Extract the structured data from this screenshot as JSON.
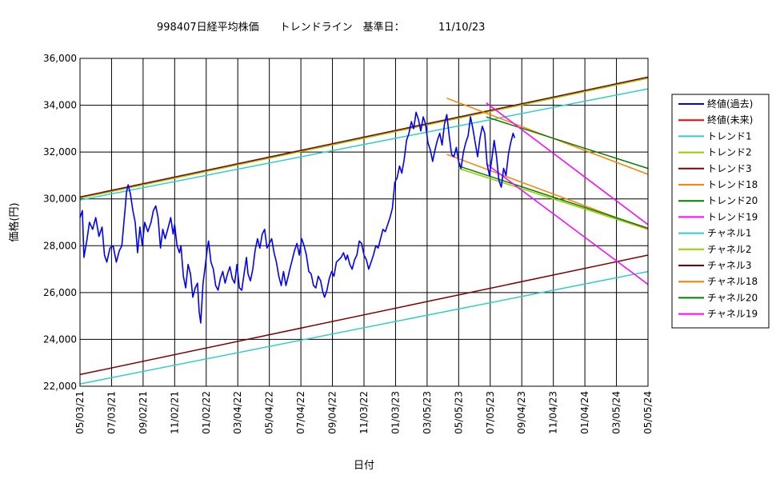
{
  "chart_data": {
    "type": "line",
    "title": "998407日経平均株価　　トレンドライン　基準日：",
    "base_date": "11/10/23",
    "ylabel": "価格(円)",
    "xlabel": "日付",
    "ylim": [
      22000,
      36000
    ],
    "yticks": [
      "22,000",
      "24,000",
      "26,000",
      "28,000",
      "30,000",
      "32,000",
      "34,000",
      "36,000"
    ],
    "xticks": [
      "05/03/21",
      "07/03/21",
      "09/02/21",
      "11/02/21",
      "01/02/22",
      "03/04/22",
      "05/04/22",
      "07/04/22",
      "09/04/22",
      "11/03/22",
      "01/03/23",
      "03/05/23",
      "05/05/23",
      "07/05/23",
      "09/04/23",
      "11/04/23",
      "01/04/24",
      "03/05/24",
      "05/05/24"
    ],
    "x_range_months": [
      0,
      36
    ],
    "grid": true,
    "legend_position": "right",
    "series": [
      {
        "name": "終値(過去)",
        "color": "#0000ff",
        "style": "wide",
        "points": [
          [
            0.0,
            29200
          ],
          [
            0.3,
            29500
          ],
          [
            0.5,
            27500
          ],
          [
            0.9,
            28300
          ],
          [
            1.2,
            29000
          ],
          [
            1.6,
            28700
          ],
          [
            2.0,
            29200
          ],
          [
            2.4,
            28400
          ],
          [
            2.8,
            28800
          ],
          [
            3.1,
            27600
          ],
          [
            3.4,
            27300
          ],
          [
            3.8,
            27900
          ],
          [
            4.2,
            28000
          ],
          [
            4.6,
            27300
          ],
          [
            5.0,
            27800
          ],
          [
            5.3,
            28000
          ],
          [
            5.7,
            29500
          ],
          [
            5.9,
            30300
          ],
          [
            6.1,
            30600
          ],
          [
            6.4,
            30200
          ],
          [
            6.7,
            29500
          ],
          [
            7.0,
            29000
          ],
          [
            7.3,
            27700
          ],
          [
            7.6,
            28800
          ],
          [
            7.9,
            28000
          ],
          [
            8.2,
            29000
          ],
          [
            8.6,
            28600
          ],
          [
            9.0,
            29000
          ],
          [
            9.3,
            29500
          ],
          [
            9.6,
            29700
          ],
          [
            9.9,
            29200
          ],
          [
            10.2,
            27900
          ],
          [
            10.5,
            28700
          ],
          [
            10.8,
            28300
          ],
          [
            11.2,
            28800
          ],
          [
            11.5,
            29200
          ],
          [
            11.8,
            28500
          ],
          [
            12.0,
            28900
          ],
          [
            12.3,
            28000
          ],
          [
            12.6,
            27700
          ],
          [
            12.8,
            28000
          ],
          [
            13.1,
            26700
          ],
          [
            13.4,
            26200
          ],
          [
            13.7,
            27200
          ],
          [
            14.0,
            26800
          ],
          [
            14.3,
            25800
          ],
          [
            14.6,
            26200
          ],
          [
            14.9,
            26400
          ],
          [
            15.1,
            25200
          ],
          [
            15.3,
            24700
          ],
          [
            15.6,
            26400
          ],
          [
            15.9,
            27200
          ],
          [
            16.1,
            27800
          ],
          [
            16.3,
            28200
          ],
          [
            16.6,
            27300
          ],
          [
            16.9,
            27000
          ],
          [
            17.2,
            26300
          ],
          [
            17.5,
            26100
          ],
          [
            17.8,
            26600
          ],
          [
            18.1,
            26900
          ],
          [
            18.4,
            26400
          ],
          [
            18.7,
            26800
          ],
          [
            19.0,
            27100
          ],
          [
            19.3,
            26600
          ],
          [
            19.6,
            26400
          ],
          [
            19.9,
            27200
          ],
          [
            20.2,
            26200
          ],
          [
            20.5,
            26100
          ],
          [
            20.8,
            26800
          ],
          [
            21.1,
            27500
          ],
          [
            21.3,
            26800
          ],
          [
            21.6,
            26500
          ],
          [
            21.9,
            27000
          ],
          [
            22.2,
            27800
          ],
          [
            22.5,
            28300
          ],
          [
            22.8,
            27900
          ],
          [
            23.1,
            28500
          ],
          [
            23.4,
            28700
          ],
          [
            23.7,
            27900
          ],
          [
            24.0,
            28100
          ],
          [
            24.3,
            28300
          ],
          [
            24.6,
            27700
          ],
          [
            24.9,
            27300
          ],
          [
            25.2,
            26700
          ],
          [
            25.5,
            26300
          ],
          [
            25.8,
            26900
          ],
          [
            26.1,
            26300
          ],
          [
            26.4,
            26700
          ],
          [
            26.6,
            27000
          ],
          [
            26.9,
            27400
          ],
          [
            27.2,
            27800
          ],
          [
            27.5,
            28100
          ],
          [
            27.8,
            27600
          ],
          [
            28.1,
            28300
          ],
          [
            28.4,
            28000
          ],
          [
            28.7,
            27600
          ],
          [
            29.0,
            26900
          ],
          [
            29.3,
            26800
          ],
          [
            29.6,
            26300
          ],
          [
            29.9,
            26200
          ],
          [
            30.2,
            26700
          ],
          [
            30.5,
            26500
          ],
          [
            30.8,
            26000
          ],
          [
            31.0,
            25800
          ],
          [
            31.3,
            26100
          ],
          [
            31.6,
            26600
          ],
          [
            31.9,
            26900
          ],
          [
            32.2,
            26700
          ],
          [
            32.5,
            27300
          ],
          [
            32.8,
            27400
          ],
          [
            33.1,
            27500
          ],
          [
            33.4,
            27700
          ],
          [
            33.7,
            27400
          ],
          [
            33.9,
            27600
          ],
          [
            34.2,
            27200
          ],
          [
            34.5,
            27000
          ],
          [
            34.8,
            27400
          ],
          [
            35.1,
            27600
          ],
          [
            35.4,
            28200
          ],
          [
            35.7,
            28100
          ],
          [
            36.0,
            27600
          ],
          [
            36.3,
            27400
          ],
          [
            36.6,
            27000
          ],
          [
            36.9,
            27300
          ],
          [
            37.2,
            27600
          ],
          [
            37.5,
            28000
          ],
          [
            37.8,
            27900
          ],
          [
            38.1,
            28300
          ],
          [
            38.4,
            28700
          ],
          [
            38.7,
            28600
          ],
          [
            39.0,
            28900
          ],
          [
            39.3,
            29200
          ],
          [
            39.6,
            29600
          ],
          [
            39.9,
            30700
          ],
          [
            40.2,
            30900
          ],
          [
            40.5,
            31400
          ],
          [
            40.8,
            31100
          ],
          [
            41.1,
            31700
          ],
          [
            41.4,
            32500
          ],
          [
            41.7,
            32800
          ],
          [
            42.0,
            33300
          ],
          [
            42.3,
            33000
          ],
          [
            42.6,
            33700
          ],
          [
            42.9,
            33400
          ],
          [
            43.2,
            32900
          ],
          [
            43.5,
            33500
          ],
          [
            43.8,
            33200
          ],
          [
            44.1,
            32400
          ],
          [
            44.4,
            32100
          ],
          [
            44.7,
            31600
          ],
          [
            45.0,
            32100
          ],
          [
            45.3,
            32500
          ],
          [
            45.6,
            32800
          ],
          [
            45.9,
            32300
          ],
          [
            46.2,
            33200
          ],
          [
            46.5,
            33600
          ],
          [
            46.8,
            32700
          ],
          [
            47.1,
            31900
          ],
          [
            47.4,
            31800
          ],
          [
            47.7,
            32200
          ],
          [
            48.0,
            31600
          ],
          [
            48.3,
            31300
          ],
          [
            48.6,
            32000
          ],
          [
            48.9,
            32400
          ],
          [
            49.2,
            32700
          ],
          [
            49.5,
            33500
          ],
          [
            49.8,
            33000
          ],
          [
            50.1,
            32400
          ],
          [
            50.4,
            31800
          ],
          [
            50.7,
            32600
          ],
          [
            51.0,
            33100
          ],
          [
            51.3,
            32800
          ],
          [
            51.6,
            31500
          ],
          [
            51.9,
            31000
          ],
          [
            52.2,
            31700
          ],
          [
            52.5,
            32500
          ],
          [
            52.8,
            31800
          ],
          [
            53.1,
            30800
          ],
          [
            53.4,
            30500
          ],
          [
            53.7,
            31300
          ],
          [
            54.0,
            31000
          ],
          [
            54.3,
            31900
          ],
          [
            54.6,
            32400
          ],
          [
            54.9,
            32800
          ],
          [
            55.1,
            32600
          ]
        ]
      },
      {
        "name": "終値(未来)",
        "color": "#ff0000",
        "style": "thin",
        "points": []
      },
      {
        "name": "トレンド1",
        "color": "#33cccc",
        "style": "thin",
        "points": [
          [
            0,
            29950
          ],
          [
            72,
            34700
          ]
        ]
      },
      {
        "name": "トレンド2",
        "color": "#99cc00",
        "style": "thin",
        "points": [
          [
            0,
            30030
          ],
          [
            72,
            35150
          ]
        ]
      },
      {
        "name": "トレンド3",
        "color": "#800000",
        "style": "thin",
        "points": [
          [
            0,
            30080
          ],
          [
            72,
            35200
          ]
        ]
      },
      {
        "name": "トレンド18",
        "color": "#ff8000",
        "style": "thin",
        "points": [
          [
            46.5,
            34300
          ],
          [
            72,
            31050
          ]
        ]
      },
      {
        "name": "トレンド20",
        "color": "#008000",
        "style": "thin",
        "points": [
          [
            51.5,
            33500
          ],
          [
            72,
            31300
          ]
        ]
      },
      {
        "name": "トレンド19",
        "color": "#ff00ff",
        "style": "thin",
        "points": [
          [
            51.5,
            34100
          ],
          [
            72,
            28900
          ]
        ]
      },
      {
        "name": "チャネル1",
        "color": "#33cccc",
        "style": "thin",
        "points": [
          [
            0,
            22100
          ],
          [
            72,
            26900
          ]
        ]
      },
      {
        "name": "チャネル2",
        "color": "#99cc00",
        "style": "thin",
        "points": [
          [
            48,
            31300
          ],
          [
            72,
            28700
          ]
        ]
      },
      {
        "name": "チャネル3",
        "color": "#800000",
        "style": "thin",
        "points": [
          [
            0,
            22500
          ],
          [
            72,
            27600
          ]
        ]
      },
      {
        "name": "チャネル18",
        "color": "#ff8000",
        "style": "thin",
        "points": [
          [
            46.5,
            31900
          ],
          [
            72,
            28700
          ]
        ]
      },
      {
        "name": "チャネル20",
        "color": "#008000",
        "style": "thin",
        "points": [
          [
            48,
            31400
          ],
          [
            72,
            28750
          ]
        ]
      },
      {
        "name": "チャネル19",
        "color": "#ff00ff",
        "style": "thin",
        "points": [
          [
            51.5,
            31500
          ],
          [
            72,
            26350
          ]
        ]
      }
    ]
  }
}
